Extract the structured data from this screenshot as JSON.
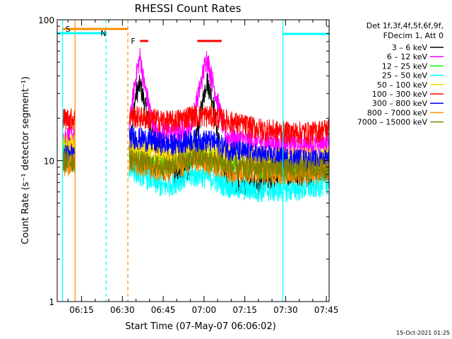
{
  "chart_data": {
    "type": "line",
    "title": "RHESSI Count Rates",
    "xlabel": "Start Time (07-May-07 06:06:02)",
    "ylabel": "Count Rate (s⁻¹ detector segment⁻¹)",
    "x_unit": "minutes after 06:00",
    "xlim": [
      6.03,
      106.0
    ],
    "ylim": [
      1,
      100
    ],
    "y_scale": "log",
    "x_ticks": [
      {
        "v": 15,
        "label": "06:15"
      },
      {
        "v": 30,
        "label": "06:30"
      },
      {
        "v": 45,
        "label": "06:45"
      },
      {
        "v": 60,
        "label": "07:00"
      },
      {
        "v": 75,
        "label": "07:15"
      },
      {
        "v": 90,
        "label": "07:30"
      },
      {
        "v": 105,
        "label": "07:45"
      }
    ],
    "y_ticks": [
      {
        "v": 1,
        "label": "1"
      },
      {
        "v": 10,
        "label": "10"
      },
      {
        "v": 100,
        "label": "100"
      }
    ],
    "legend_title": [
      "Det 1f,3f,4f,5f,6f,9f,",
      "FDecim 1, Att 0"
    ],
    "legend_position": "right",
    "footer_date": "15-Oct-2021 01:25",
    "flags": [
      {
        "label": "S",
        "color": "#ff8c00",
        "x_start": 8,
        "x_end": 32
      },
      {
        "label": "N",
        "color": "#00ffff",
        "x_start": 6.03,
        "x_end": 24
      },
      {
        "label": "F",
        "color": "#ff0000",
        "x_start": 36.5,
        "x_end": 39.5
      },
      {
        "label": "",
        "color": "#ff0000",
        "x_start": 57.5,
        "x_end": 66.5
      },
      {
        "label": "",
        "color": "#00ffff",
        "x_start": 89,
        "x_end": 106
      }
    ],
    "vlines": [
      {
        "x": 8,
        "color": "#00ffff",
        "style": "solid"
      },
      {
        "x": 12.6,
        "color": "#ff8c00",
        "style": "solid"
      },
      {
        "x": 24,
        "color": "#00ffff",
        "style": "dashed"
      },
      {
        "x": 32,
        "color": "#ff8c00",
        "style": "dashed"
      },
      {
        "x": 89,
        "color": "#00ffff",
        "style": "solid"
      },
      {
        "x": 106,
        "color": "#00ffff",
        "style": "dashed"
      }
    ],
    "data_segments": [
      [
        8,
        12.6
      ],
      [
        32.5,
        106
      ]
    ],
    "series": [
      {
        "name": "3 – 6 keV",
        "color": "#000000",
        "points": [
          [
            8,
            13
          ],
          [
            12.6,
            13
          ],
          [
            32.5,
            12
          ],
          [
            35,
            30
          ],
          [
            36.5,
            35
          ],
          [
            40,
            18
          ],
          [
            45,
            10
          ],
          [
            50,
            8
          ],
          [
            55,
            9
          ],
          [
            58,
            18
          ],
          [
            61,
            38
          ],
          [
            63,
            28
          ],
          [
            67,
            9
          ],
          [
            72,
            7
          ],
          [
            80,
            7
          ],
          [
            90,
            8
          ],
          [
            100,
            8
          ],
          [
            106,
            8.5
          ]
        ]
      },
      {
        "name": "6 – 12 keV",
        "color": "#ff00ff",
        "points": [
          [
            8,
            15
          ],
          [
            12.6,
            15
          ],
          [
            32.5,
            18
          ],
          [
            35,
            40
          ],
          [
            36.5,
            55
          ],
          [
            38,
            35
          ],
          [
            42,
            16
          ],
          [
            50,
            16
          ],
          [
            55,
            17
          ],
          [
            58,
            30
          ],
          [
            61,
            55
          ],
          [
            64,
            32
          ],
          [
            68,
            15
          ],
          [
            75,
            14
          ],
          [
            90,
            13
          ],
          [
            100,
            13
          ],
          [
            106,
            13.5
          ]
        ]
      },
      {
        "name": "12 – 25 keV",
        "color": "#00ff00",
        "points": [
          [
            8,
            12
          ],
          [
            12.6,
            12
          ],
          [
            32.5,
            12
          ],
          [
            40,
            10
          ],
          [
            45,
            9.5
          ],
          [
            52,
            10.5
          ],
          [
            58,
            11
          ],
          [
            62,
            10.5
          ],
          [
            70,
            9.5
          ],
          [
            80,
            9
          ],
          [
            90,
            9
          ],
          [
            100,
            9
          ],
          [
            106,
            9.5
          ]
        ]
      },
      {
        "name": "25 – 50 keV",
        "color": "#00ffff",
        "points": [
          [
            8,
            10
          ],
          [
            12.6,
            10
          ],
          [
            32.5,
            9
          ],
          [
            40,
            7.5
          ],
          [
            45,
            6.5
          ],
          [
            52,
            7.5
          ],
          [
            58,
            8
          ],
          [
            63,
            7.5
          ],
          [
            70,
            6.5
          ],
          [
            80,
            6.2
          ],
          [
            90,
            6.2
          ],
          [
            100,
            6.5
          ],
          [
            106,
            7
          ]
        ]
      },
      {
        "name": "50 – 100 keV",
        "color": "#ffd700",
        "points": [
          [
            8,
            13
          ],
          [
            12.6,
            13
          ],
          [
            32.5,
            12
          ],
          [
            40,
            11.5
          ],
          [
            45,
            11
          ],
          [
            52,
            12
          ],
          [
            58,
            12.5
          ],
          [
            63,
            12
          ],
          [
            70,
            11
          ],
          [
            80,
            10.5
          ],
          [
            90,
            10.5
          ],
          [
            100,
            10.5
          ],
          [
            106,
            11
          ]
        ]
      },
      {
        "name": "100 – 300 keV",
        "color": "#ff0000",
        "points": [
          [
            8,
            20
          ],
          [
            12.6,
            20
          ],
          [
            32.5,
            21
          ],
          [
            40,
            20
          ],
          [
            48,
            19
          ],
          [
            55,
            21
          ],
          [
            62,
            21
          ],
          [
            70,
            19
          ],
          [
            80,
            17
          ],
          [
            90,
            16
          ],
          [
            100,
            16
          ],
          [
            106,
            17
          ]
        ]
      },
      {
        "name": "300 – 800 keV",
        "color": "#0000ff",
        "points": [
          [
            8,
            11
          ],
          [
            12.6,
            11
          ],
          [
            32.5,
            15
          ],
          [
            40,
            14
          ],
          [
            48,
            13
          ],
          [
            55,
            14
          ],
          [
            62,
            14
          ],
          [
            70,
            12
          ],
          [
            80,
            11
          ],
          [
            90,
            10.5
          ],
          [
            100,
            10
          ],
          [
            106,
            10.5
          ]
        ]
      },
      {
        "name": "800 – 7000 keV",
        "color": "#ff8c00",
        "points": [
          [
            8,
            9.5
          ],
          [
            12.6,
            9.5
          ],
          [
            32.5,
            10
          ],
          [
            40,
            9
          ],
          [
            45,
            8.5
          ],
          [
            52,
            9.5
          ],
          [
            58,
            10
          ],
          [
            63,
            9.5
          ],
          [
            70,
            8.5
          ],
          [
            80,
            8.5
          ],
          [
            90,
            8.2
          ],
          [
            100,
            8.2
          ],
          [
            106,
            8.5
          ]
        ]
      },
      {
        "name": "7000 – 15000 keV",
        "color": "#808000",
        "points": [
          [
            8,
            10
          ],
          [
            12.6,
            10
          ],
          [
            32.5,
            10.5
          ],
          [
            40,
            9.5
          ],
          [
            45,
            9
          ],
          [
            52,
            10
          ],
          [
            58,
            10.5
          ],
          [
            63,
            10
          ],
          [
            70,
            9
          ],
          [
            80,
            9
          ],
          [
            90,
            8.7
          ],
          [
            100,
            8.7
          ],
          [
            106,
            9
          ]
        ]
      }
    ]
  }
}
